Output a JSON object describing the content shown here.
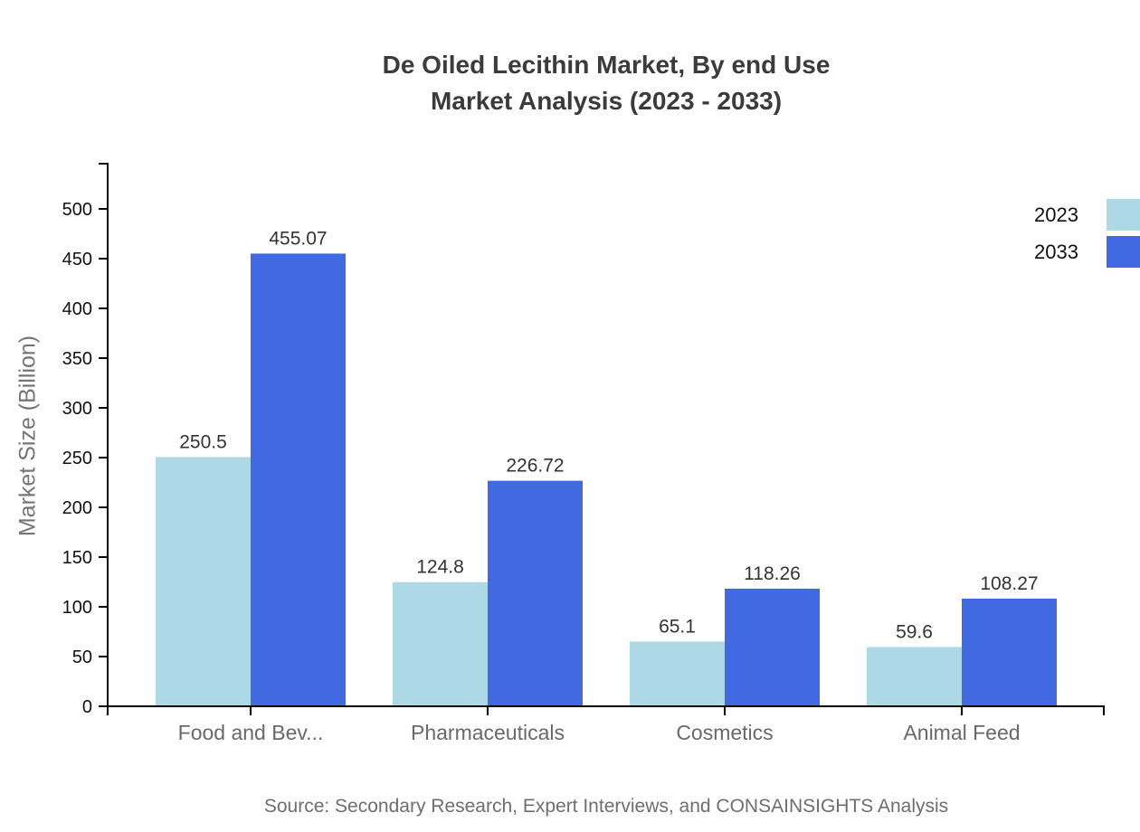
{
  "title": {
    "line1": "De Oiled Lecithin Market, By end Use",
    "line2": "Market Analysis (2023 - 2033)"
  },
  "source": "Source: Secondary Research, Expert Interviews, and CONSAINSIGHTS Analysis",
  "chart_data": {
    "type": "bar",
    "title": "De Oiled Lecithin Market, By end Use Market Analysis (2023 - 2033)",
    "categories": [
      "Food and Bev...",
      "Pharmaceuticals",
      "Cosmetics",
      "Animal Feed"
    ],
    "series": [
      {
        "name": "2023",
        "color": "#ADD8E6",
        "values": [
          250.5,
          124.8,
          65.1,
          59.6
        ]
      },
      {
        "name": "2033",
        "color": "#4169E1",
        "values": [
          455.07,
          226.72,
          118.26,
          108.27
        ]
      }
    ],
    "xlabel": "",
    "ylabel": "Market Size (Billion)",
    "ylim": [
      0,
      500
    ],
    "yticks": [
      0,
      50,
      100,
      150,
      200,
      250,
      300,
      350,
      400,
      450,
      500
    ],
    "grid": false,
    "legend_position": "top-right",
    "value_labels": true
  },
  "colors": {
    "axis": "#000000",
    "tick_label": "#111111",
    "value_label": "#333333",
    "category_label": "#696969",
    "title": "#3b3b3b",
    "axis_title": "#757575",
    "source": "#6e6e6e",
    "background": "#ffffff"
  }
}
